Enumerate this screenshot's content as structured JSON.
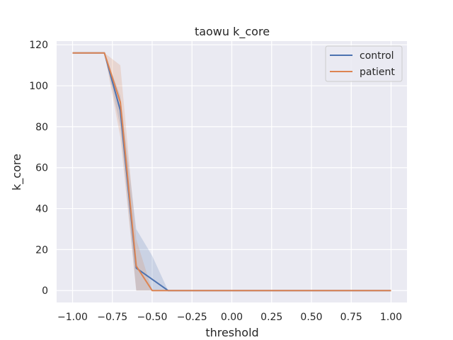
{
  "chart_data": {
    "type": "line",
    "title": "taowu k_core",
    "xlabel": "threshold",
    "ylabel": "k_core",
    "xlim": [
      -1.1,
      1.1
    ],
    "ylim": [
      -5.8,
      121.8
    ],
    "xticks": [
      -1.0,
      -0.75,
      -0.5,
      -0.25,
      0.0,
      0.25,
      0.5,
      0.75,
      1.0
    ],
    "xtick_labels": [
      "−1.00",
      "−0.75",
      "−0.50",
      "−0.25",
      "0.00",
      "0.25",
      "0.50",
      "0.75",
      "1.00"
    ],
    "yticks": [
      0,
      20,
      40,
      60,
      80,
      100,
      120
    ],
    "ytick_labels": [
      "0",
      "20",
      "40",
      "60",
      "80",
      "100",
      "120"
    ],
    "grid": true,
    "legend_position": "top-right",
    "x": [
      -1.0,
      -0.9,
      -0.8,
      -0.7,
      -0.6,
      -0.5,
      -0.4,
      -0.3,
      -0.2,
      -0.1,
      0.0,
      0.1,
      0.2,
      0.3,
      0.4,
      0.5,
      0.6,
      0.7,
      0.8,
      0.9,
      1.0
    ],
    "series": [
      {
        "name": "control",
        "color": "#4c72b0",
        "values": [
          116,
          116,
          116,
          88,
          11,
          5.5,
          0,
          0,
          0,
          0,
          0,
          0,
          0,
          0,
          0,
          0,
          0,
          0,
          0,
          0,
          0
        ],
        "ci_low": [
          116,
          116,
          116,
          80,
          0,
          0,
          0,
          0,
          0,
          0,
          0,
          0,
          0,
          0,
          0,
          0,
          0,
          0,
          0,
          0,
          0
        ],
        "ci_high": [
          116,
          116,
          116,
          95,
          30,
          17,
          0,
          0,
          0,
          0,
          0,
          0,
          0,
          0,
          0,
          0,
          0,
          0,
          0,
          0,
          0
        ]
      },
      {
        "name": "patient",
        "color": "#dd8452",
        "values": [
          116,
          116,
          116,
          92,
          12,
          0,
          0,
          0,
          0,
          0,
          0,
          0,
          0,
          0,
          0,
          0,
          0,
          0,
          0,
          0,
          0
        ],
        "ci_low": [
          116,
          116,
          116,
          75,
          0,
          0,
          0,
          0,
          0,
          0,
          0,
          0,
          0,
          0,
          0,
          0,
          0,
          0,
          0,
          0,
          0
        ],
        "ci_high": [
          116,
          116,
          116,
          110,
          25,
          0,
          0,
          0,
          0,
          0,
          0,
          0,
          0,
          0,
          0,
          0,
          0,
          0,
          0,
          0,
          0
        ]
      }
    ]
  }
}
